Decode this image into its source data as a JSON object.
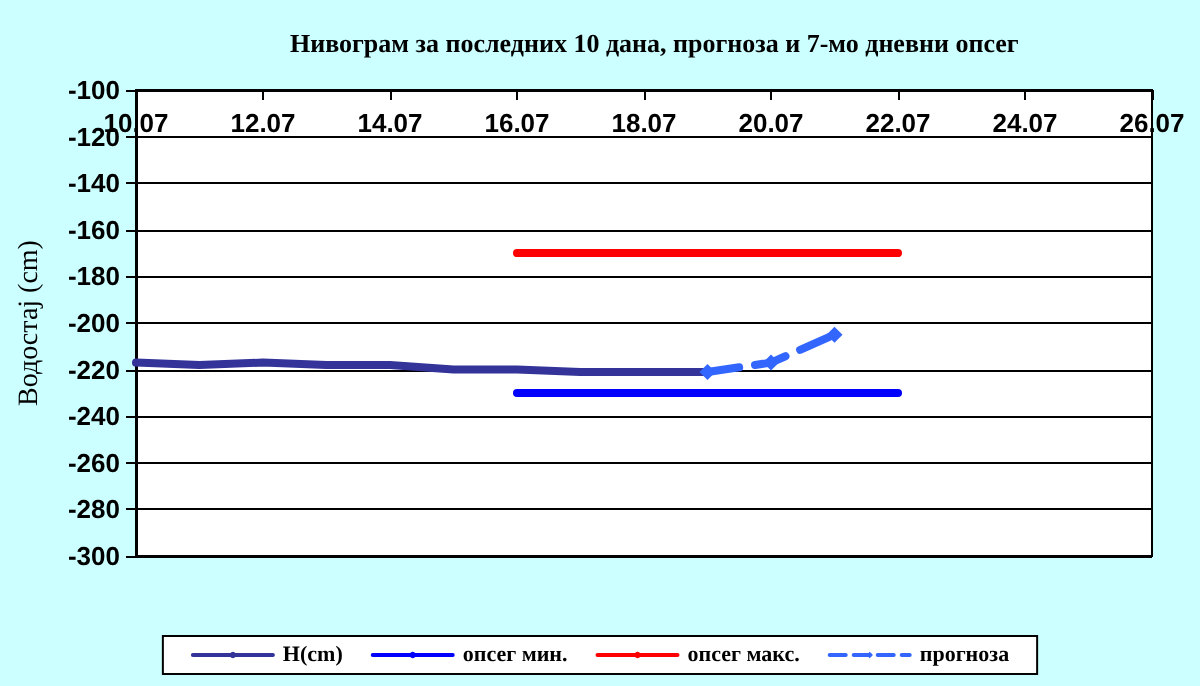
{
  "chart_data": {
    "type": "line",
    "title": "Нивограм за последних 10 дана, прогноза и 7-мо дневни опсег",
    "ylabel": "Водостај (cm)",
    "xlim": [
      "--07-10",
      "--07-26"
    ],
    "xticks": [
      {
        "value": "--07-10",
        "label": "10.07"
      },
      {
        "value": "--07-12",
        "label": "12.07"
      },
      {
        "value": "--07-14",
        "label": "14.07"
      },
      {
        "value": "--07-16",
        "label": "16.07"
      },
      {
        "value": "--07-18",
        "label": "18.07"
      },
      {
        "value": "--07-20",
        "label": "20.07"
      },
      {
        "value": "--07-22",
        "label": "22.07"
      },
      {
        "value": "--07-24",
        "label": "24.07"
      },
      {
        "value": "--07-26",
        "label": "26.07"
      }
    ],
    "ylim": [
      -300,
      -100
    ],
    "yticks": [
      -300,
      -280,
      -260,
      -240,
      -220,
      -200,
      -180,
      -160,
      -140,
      -120,
      -100
    ],
    "grid": "y",
    "legend": "bottom",
    "series": [
      {
        "name": "H(cm)",
        "color": "#333399",
        "marker": "none",
        "line_style": "solid",
        "x": [
          "--07-10",
          "--07-11",
          "--07-12",
          "--07-13",
          "--07-14",
          "--07-15",
          "--07-16",
          "--07-17",
          "--07-18",
          "--07-19"
        ],
        "values": [
          -217,
          -218,
          -217,
          -218,
          -218,
          -220,
          -220,
          -221,
          -221,
          -221
        ]
      },
      {
        "name": "опсег мин.",
        "color": "#0000ff",
        "marker": "none",
        "line_style": "solid",
        "x": [
          "--07-16",
          "--07-22"
        ],
        "values": [
          -230,
          -230
        ]
      },
      {
        "name": "опсег макс.",
        "color": "#ff0000",
        "marker": "none",
        "line_style": "solid",
        "x": [
          "--07-16",
          "--07-22"
        ],
        "values": [
          -170,
          -170
        ]
      },
      {
        "name": "прогноза",
        "color": "#3366ff",
        "marker": "diamond",
        "line_style": "dashed",
        "x": [
          "--07-19",
          "--07-20",
          "--07-21"
        ],
        "values": [
          -221,
          -217,
          -205
        ]
      }
    ]
  }
}
